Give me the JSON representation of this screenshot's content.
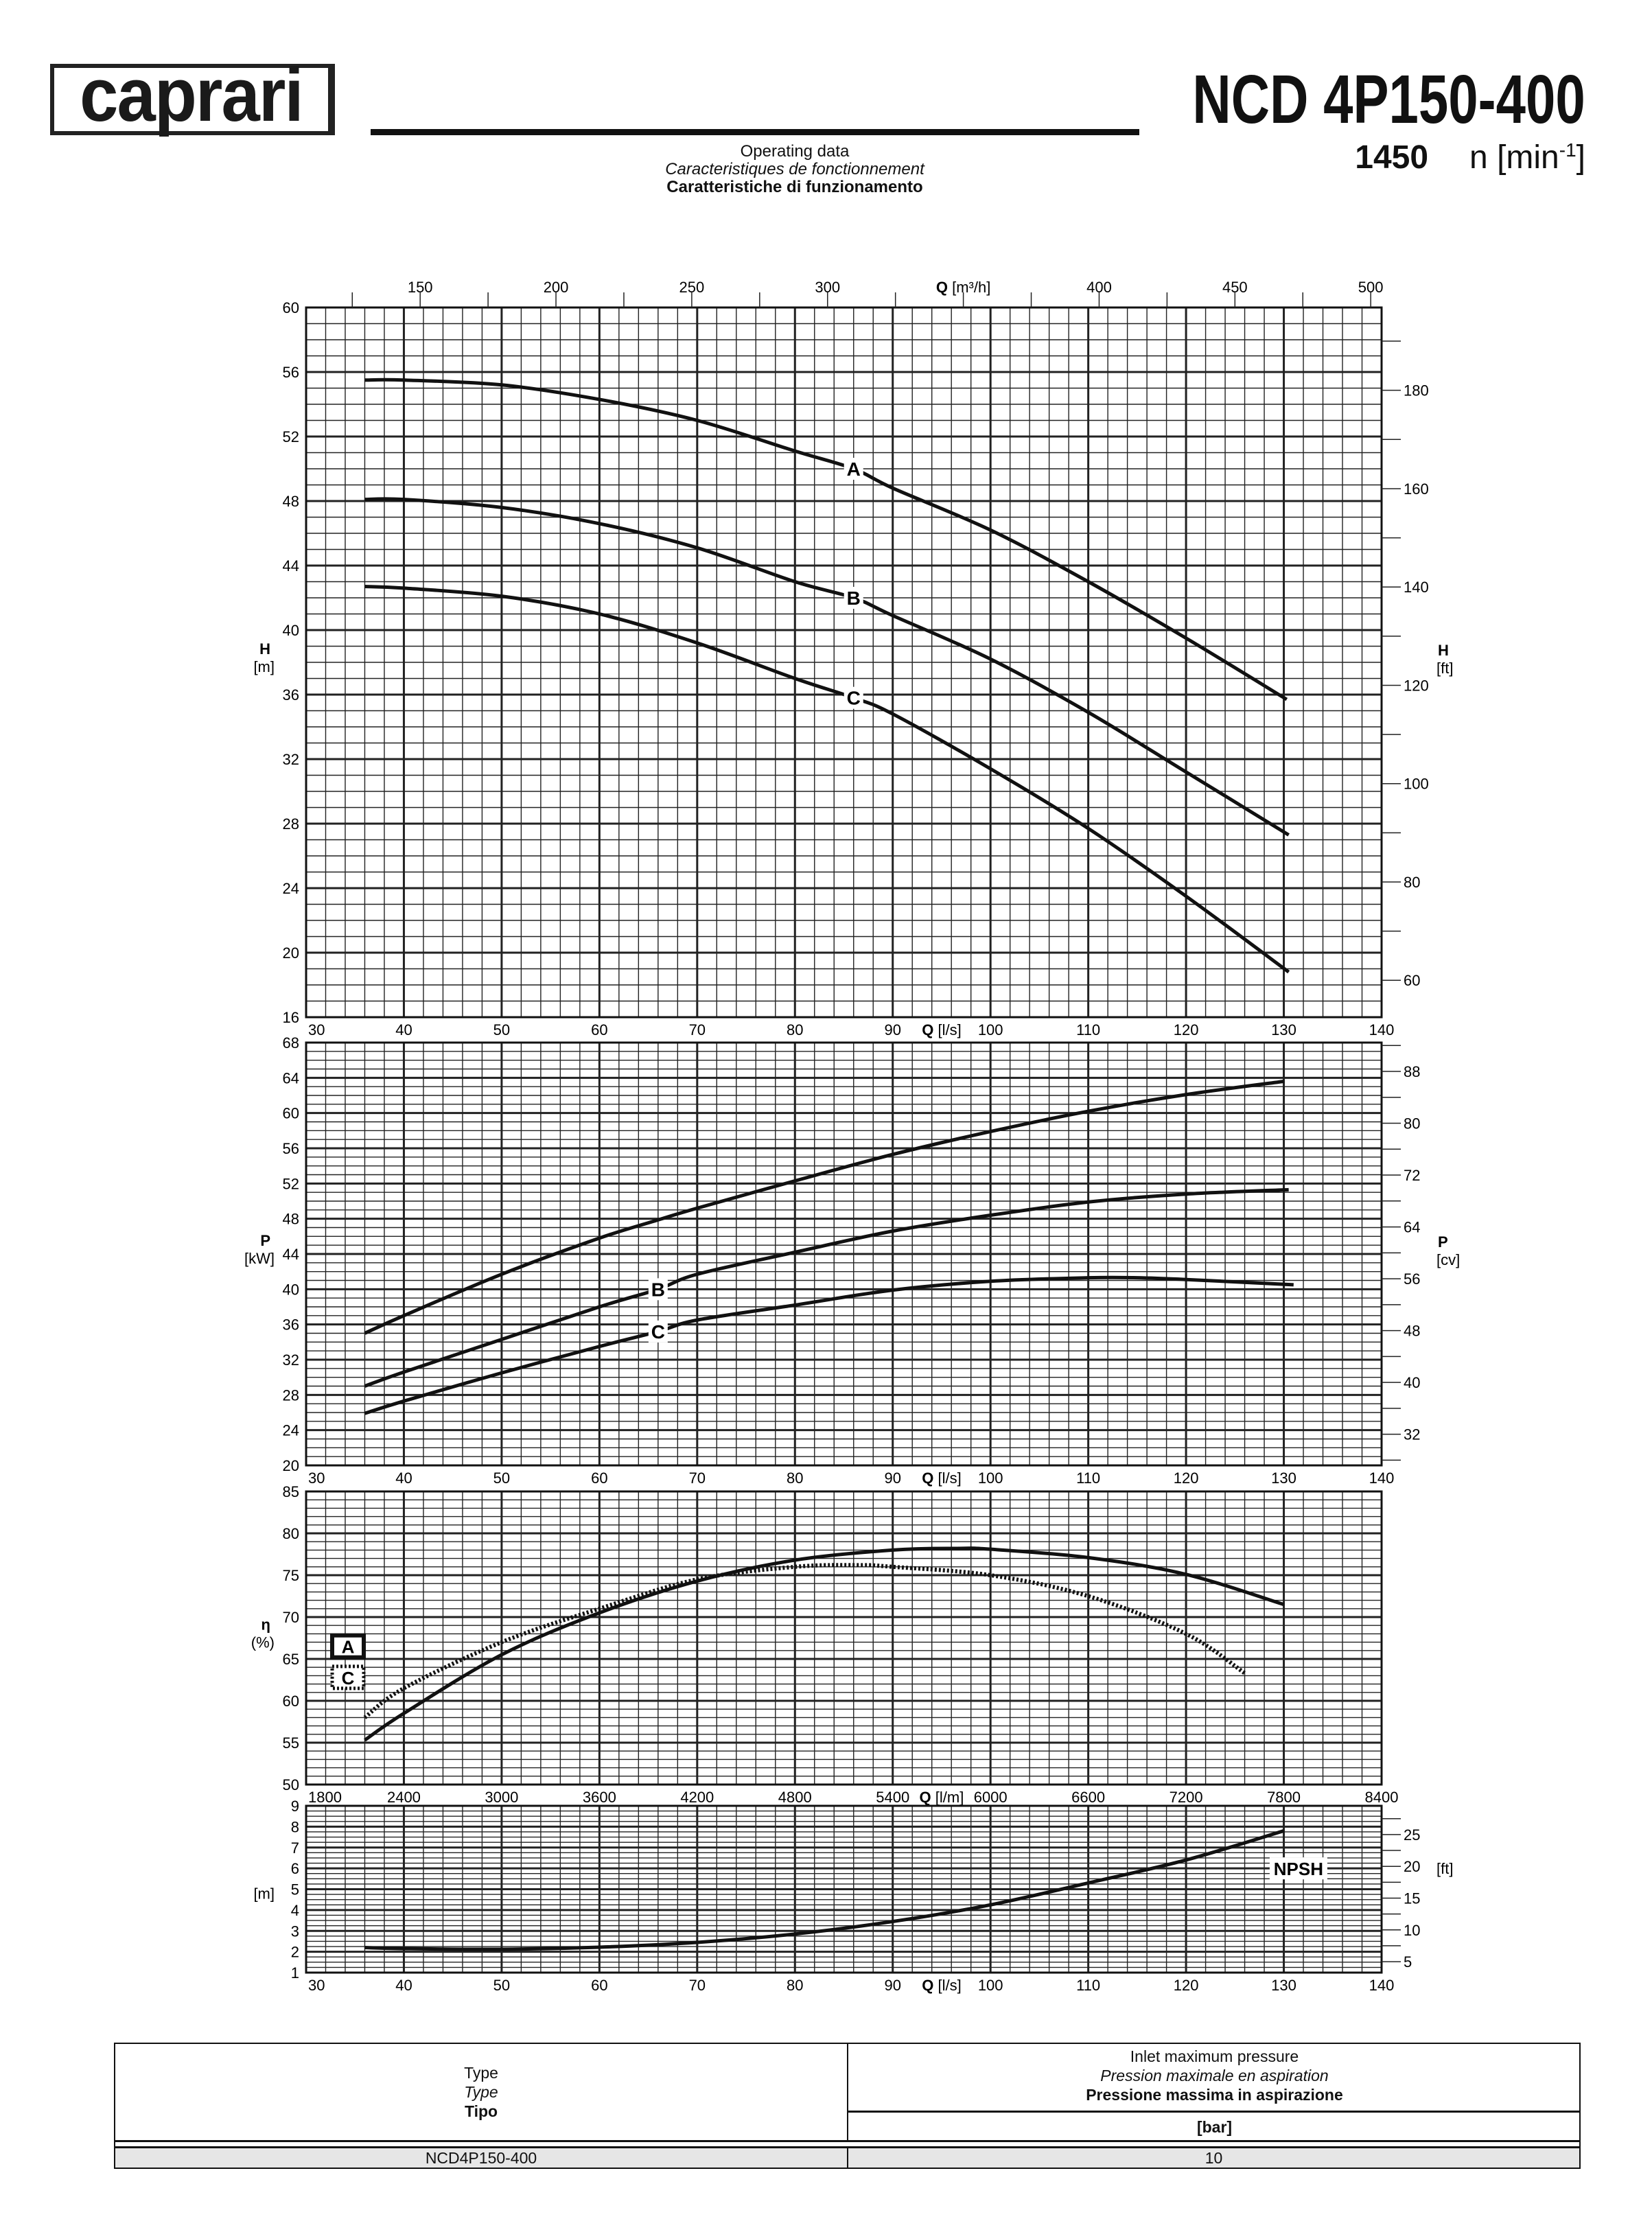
{
  "header": {
    "logo_text": "caprari",
    "model_title": "NCD 4P150-400",
    "speed_value": "1450",
    "speed_unit": "n [min",
    "speed_unit_exp": "-1",
    "speed_unit_close": "]",
    "subtitle_en": "Operating data",
    "subtitle_fr": "Caracteristiques de fonctionnement",
    "subtitle_it": "Caratteristiche di funzionamento"
  },
  "chart_data": [
    {
      "id": "head",
      "type": "line",
      "x_unit_label": "Q",
      "x_unit": "[l/s]",
      "xlim": [
        30,
        140
      ],
      "xticks": [
        30,
        40,
        50,
        60,
        70,
        80,
        90,
        100,
        110,
        120,
        130,
        140
      ],
      "top_axis": {
        "label": "Q",
        "unit": "[m³/h]",
        "ticks": [
          150,
          200,
          250,
          300,
          350,
          400,
          450,
          500
        ],
        "factor": 3.6
      },
      "ylabel": "H",
      "yunit": "[m]",
      "ylim": [
        16,
        60
      ],
      "yticks": [
        16,
        20,
        24,
        28,
        32,
        36,
        40,
        44,
        48,
        52,
        56,
        60
      ],
      "right_axis": {
        "label": "H",
        "unit": "[ft]",
        "ticks": [
          60,
          80,
          100,
          120,
          140,
          160,
          180
        ],
        "factor": 3.2808
      },
      "grid": true,
      "series": [
        {
          "name": "A",
          "x": [
            36,
            40,
            50,
            60,
            70,
            80,
            86,
            90,
            100,
            110,
            120,
            130.3
          ],
          "y": [
            55.5,
            55.5,
            55.2,
            54.3,
            53,
            51.1,
            50,
            48.8,
            46.2,
            43,
            39.5,
            35.7
          ]
        },
        {
          "name": "B",
          "x": [
            36,
            40,
            50,
            60,
            70,
            80,
            86,
            90,
            100,
            110,
            120,
            130.5
          ],
          "y": [
            48.1,
            48.1,
            47.6,
            46.6,
            45.1,
            43,
            42,
            40.9,
            38.2,
            34.9,
            31.2,
            27.3
          ]
        },
        {
          "name": "C",
          "x": [
            36,
            40,
            50,
            60,
            70,
            80,
            86,
            90,
            100,
            110,
            120,
            130.5
          ],
          "y": [
            42.7,
            42.6,
            42.1,
            41,
            39.2,
            37,
            35.8,
            34.8,
            31.4,
            27.7,
            23.5,
            18.8
          ]
        }
      ],
      "label_x": 86
    },
    {
      "id": "power",
      "type": "line",
      "x_unit_label": "Q",
      "x_unit": "[l/s]",
      "xlim": [
        30,
        140
      ],
      "xticks": [
        30,
        40,
        50,
        60,
        70,
        80,
        90,
        100,
        110,
        120,
        130,
        140
      ],
      "ylabel": "P",
      "yunit": "[kW]",
      "ylim": [
        20,
        68
      ],
      "yticks": [
        20,
        24,
        28,
        32,
        36,
        40,
        44,
        48,
        52,
        56,
        60,
        64,
        68
      ],
      "right_axis": {
        "label": "P",
        "unit": "[cv]",
        "ticks": [
          32,
          40,
          48,
          56,
          64,
          72,
          80,
          88
        ],
        "factor": 1.3596
      },
      "grid": true,
      "series": [
        {
          "name": "A",
          "x": [
            36,
            40,
            50,
            60,
            65.5,
            70,
            80,
            90,
            100,
            110,
            120,
            130
          ],
          "y": [
            35,
            37,
            41.7,
            45.8,
            47.7,
            49.2,
            52.3,
            55.3,
            57.9,
            60.2,
            62.1,
            63.6
          ]
        },
        {
          "name": "B",
          "x": [
            36,
            40,
            50,
            60,
            66,
            70,
            80,
            90,
            100,
            110,
            120,
            130.5
          ],
          "y": [
            29,
            30.6,
            34.3,
            38,
            40,
            41.7,
            44.2,
            46.6,
            48.4,
            49.9,
            50.8,
            51.3
          ]
        },
        {
          "name": "C",
          "x": [
            36,
            40,
            50,
            60,
            66,
            70,
            80,
            90,
            100,
            110,
            115,
            120,
            131
          ],
          "y": [
            25.9,
            27.3,
            30.5,
            33.5,
            35.2,
            36.5,
            38.2,
            39.9,
            40.9,
            41.3,
            41.3,
            41.1,
            40.5
          ]
        }
      ],
      "label_x": 66
    },
    {
      "id": "efficiency",
      "type": "line",
      "x_unit_label": "Q",
      "x_unit": "[l/m]",
      "xlim": [
        1800,
        8400
      ],
      "xticks": [
        1800,
        2400,
        3000,
        3600,
        4200,
        4800,
        5400,
        6000,
        6600,
        7200,
        7800,
        8400
      ],
      "ylabel": "η",
      "yunit": "(%)",
      "ylim": [
        50,
        85
      ],
      "yticks": [
        50,
        55,
        60,
        65,
        70,
        75,
        80,
        85
      ],
      "grid": true,
      "legend": [
        "A",
        "C"
      ],
      "legend_placement": "left",
      "series": [
        {
          "name": "A",
          "style": "solid",
          "x": [
            2160,
            2400,
            3000,
            3600,
            4200,
            4800,
            5400,
            5800,
            6000,
            6600,
            7200,
            7800
          ],
          "y": [
            55.3,
            58.5,
            65.5,
            70.5,
            74.3,
            76.8,
            78,
            78.2,
            78.1,
            77.1,
            75.1,
            71.5
          ]
        },
        {
          "name": "C",
          "style": "dotted",
          "x": [
            2160,
            2400,
            3000,
            3600,
            4200,
            4800,
            5200,
            5400,
            6000,
            6600,
            7200,
            7560
          ],
          "y": [
            58,
            61.5,
            67,
            71,
            74.5,
            76,
            76.2,
            76,
            75,
            72.5,
            68,
            63.3
          ]
        }
      ]
    },
    {
      "id": "npsh",
      "type": "line",
      "x_unit_label": "Q",
      "x_unit": "[l/s]",
      "xlim": [
        30,
        140
      ],
      "xticks": [
        30,
        40,
        50,
        60,
        70,
        80,
        90,
        100,
        110,
        120,
        130,
        140
      ],
      "ylabel": "",
      "yunit": "[m]",
      "ylim": [
        1,
        9
      ],
      "yticks": [
        1,
        2,
        3,
        4,
        5,
        6,
        7,
        8,
        9
      ],
      "right_axis": {
        "label": "",
        "unit": "[ft]",
        "ticks": [
          5,
          10,
          15,
          20,
          25
        ],
        "factor": 3.2808
      },
      "grid": true,
      "curve_label": "NPSH",
      "series": [
        {
          "name": "NPSH",
          "x": [
            36,
            40,
            50,
            60,
            70,
            80,
            90,
            100,
            110,
            120,
            130
          ],
          "y": [
            2.2,
            2.15,
            2.12,
            2.22,
            2.45,
            2.85,
            3.45,
            4.25,
            5.3,
            6.4,
            7.8
          ]
        }
      ]
    }
  ],
  "table": {
    "col1_header": [
      "Type",
      "Type",
      "Tipo"
    ],
    "col2_header": [
      "Inlet maximum pressure",
      "Pression maximale en aspiration",
      "Pressione massima in aspirazione"
    ],
    "col2_unit": "[bar]",
    "rows": [
      {
        "type": "NCD4P150-400",
        "pressure": "10"
      }
    ]
  }
}
